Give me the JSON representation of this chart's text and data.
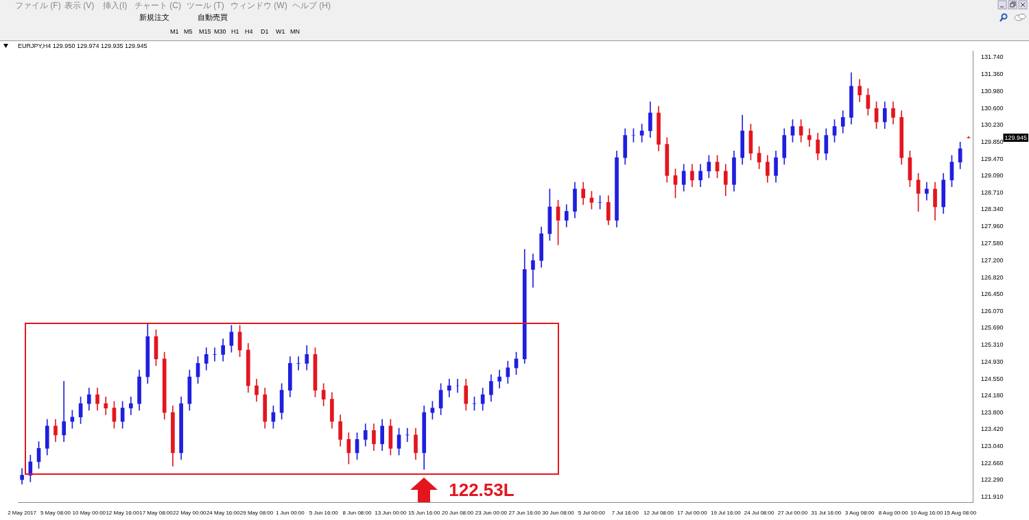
{
  "chart_data": {
    "type": "candlestick",
    "title": "EURJPY,H4 129.950 129.974 129.935 129.945",
    "categories": [
      "2 May 2017",
      null,
      null,
      null,
      "5 May 08:00",
      null,
      null,
      null,
      "10 May 00:00",
      null,
      null,
      null,
      "12 May 16:00",
      null,
      null,
      null,
      "17 May 08:00",
      null,
      null,
      null,
      "22 May 00:00",
      null,
      null,
      null,
      "24 May 16:00",
      null,
      null,
      null,
      "29 May 08:00",
      null,
      null,
      null,
      "1 Jun 00:00",
      null,
      null,
      null,
      "5 Jun 16:00",
      null,
      null,
      null,
      "8 Jun 08:00",
      null,
      null,
      null,
      "13 Jun 00:00",
      null,
      null,
      null,
      "15 Jun 16:00",
      null,
      null,
      null,
      "20 Jun 08:00",
      null,
      null,
      null,
      "23 Jun 00:00",
      null,
      null,
      null,
      "27 Jun 16:00",
      null,
      null,
      null,
      "30 Jun 08:00",
      null,
      null,
      null,
      "5 Jul 00:00",
      null,
      null,
      null,
      "7 Jul 16:00",
      null,
      null,
      null,
      "12 Jul 08:00",
      null,
      null,
      null,
      "17 Jul 00:00",
      null,
      null,
      null,
      "19 Jul 16:00",
      null,
      null,
      null,
      "24 Jul 08:00",
      null,
      null,
      null,
      "27 Jul 00:00",
      null,
      null,
      null,
      "31 Jul 16:00",
      null,
      null,
      null,
      "3 Aug 08:00",
      null,
      null,
      null,
      "8 Aug 00:00",
      null,
      null,
      null,
      "10 Aug 16:00",
      null,
      null,
      null,
      "15 Aug 08:00",
      null
    ],
    "ohlc": [
      [
        122.3,
        122.55,
        122.2,
        122.4
      ],
      [
        122.4,
        122.85,
        122.25,
        122.7
      ],
      [
        122.7,
        123.15,
        122.55,
        123.0
      ],
      [
        123.0,
        123.65,
        122.85,
        123.5
      ],
      [
        123.5,
        123.65,
        123.15,
        123.3
      ],
      [
        123.3,
        124.5,
        123.15,
        123.6
      ],
      [
        123.6,
        123.85,
        123.45,
        123.7
      ],
      [
        123.7,
        124.15,
        123.55,
        124.0
      ],
      [
        124.0,
        124.35,
        123.85,
        124.2
      ],
      [
        124.2,
        124.35,
        123.85,
        124.0
      ],
      [
        124.0,
        124.15,
        123.75,
        123.9
      ],
      [
        123.9,
        124.05,
        123.45,
        123.6
      ],
      [
        123.6,
        124.05,
        123.45,
        123.9
      ],
      [
        123.9,
        124.15,
        123.75,
        124.0
      ],
      [
        124.0,
        124.75,
        123.85,
        124.6
      ],
      [
        124.6,
        125.8,
        124.45,
        125.5
      ],
      [
        125.5,
        125.65,
        124.85,
        125.0
      ],
      [
        125.0,
        125.15,
        123.65,
        123.8
      ],
      [
        123.8,
        123.95,
        122.6,
        122.9
      ],
      [
        122.9,
        124.15,
        122.75,
        124.0
      ],
      [
        124.0,
        124.75,
        123.85,
        124.6
      ],
      [
        124.6,
        125.05,
        124.45,
        124.9
      ],
      [
        124.9,
        125.25,
        124.75,
        125.1
      ],
      [
        125.1,
        125.25,
        124.95,
        125.1
      ],
      [
        125.1,
        125.45,
        124.95,
        125.3
      ],
      [
        125.3,
        125.75,
        125.15,
        125.6
      ],
      [
        125.6,
        125.75,
        125.05,
        125.2
      ],
      [
        125.2,
        125.35,
        124.25,
        124.4
      ],
      [
        124.4,
        124.55,
        124.05,
        124.2
      ],
      [
        124.2,
        124.35,
        123.45,
        123.6
      ],
      [
        123.6,
        123.95,
        123.45,
        123.8
      ],
      [
        123.8,
        124.45,
        123.65,
        124.3
      ],
      [
        124.3,
        125.05,
        124.15,
        124.9
      ],
      [
        124.9,
        125.05,
        124.75,
        124.9
      ],
      [
        124.9,
        125.3,
        124.75,
        125.1
      ],
      [
        125.1,
        125.25,
        124.15,
        124.3
      ],
      [
        124.3,
        124.45,
        123.95,
        124.1
      ],
      [
        124.1,
        124.25,
        123.45,
        123.6
      ],
      [
        123.6,
        123.75,
        123.05,
        123.2
      ],
      [
        123.2,
        123.35,
        122.65,
        122.9
      ],
      [
        122.9,
        123.35,
        122.75,
        123.2
      ],
      [
        123.2,
        123.55,
        123.05,
        123.4
      ],
      [
        123.4,
        123.55,
        122.95,
        123.1
      ],
      [
        123.1,
        123.65,
        122.95,
        123.5
      ],
      [
        123.5,
        123.65,
        122.85,
        123.0
      ],
      [
        123.0,
        123.45,
        122.85,
        123.3
      ],
      [
        123.3,
        123.45,
        123.15,
        123.3
      ],
      [
        123.3,
        123.45,
        122.75,
        122.9
      ],
      [
        122.9,
        123.95,
        122.53,
        123.8
      ],
      [
        123.8,
        124.05,
        123.65,
        123.9
      ],
      [
        123.9,
        124.45,
        123.75,
        124.3
      ],
      [
        124.3,
        124.55,
        124.15,
        124.4
      ],
      [
        124.4,
        124.55,
        124.25,
        124.4
      ],
      [
        124.4,
        124.55,
        123.85,
        124.0
      ],
      [
        124.0,
        124.15,
        123.85,
        124.0
      ],
      [
        124.0,
        124.35,
        123.85,
        124.2
      ],
      [
        124.2,
        124.65,
        124.05,
        124.5
      ],
      [
        124.5,
        124.75,
        124.35,
        124.6
      ],
      [
        124.6,
        124.95,
        124.45,
        124.8
      ],
      [
        124.8,
        125.15,
        124.65,
        125.0
      ],
      [
        125.0,
        127.45,
        124.9,
        127.0
      ],
      [
        127.0,
        127.35,
        126.6,
        127.2
      ],
      [
        127.2,
        127.95,
        127.05,
        127.8
      ],
      [
        127.8,
        128.8,
        127.65,
        128.4
      ],
      [
        128.4,
        128.55,
        127.55,
        128.1
      ],
      [
        128.1,
        128.45,
        127.95,
        128.3
      ],
      [
        128.3,
        128.95,
        128.15,
        128.8
      ],
      [
        128.8,
        128.95,
        128.45,
        128.6
      ],
      [
        128.6,
        128.75,
        128.35,
        128.5
      ],
      [
        128.5,
        128.65,
        128.35,
        128.5
      ],
      [
        128.5,
        128.65,
        128.0,
        128.1
      ],
      [
        128.1,
        129.65,
        127.95,
        129.5
      ],
      [
        129.5,
        130.15,
        129.35,
        130.0
      ],
      [
        130.0,
        130.15,
        129.85,
        130.0
      ],
      [
        130.0,
        130.25,
        129.85,
        130.1
      ],
      [
        130.1,
        130.75,
        129.95,
        130.5
      ],
      [
        130.5,
        130.65,
        129.65,
        129.8
      ],
      [
        129.8,
        129.95,
        128.95,
        129.1
      ],
      [
        129.1,
        129.25,
        128.6,
        128.9
      ],
      [
        128.9,
        129.35,
        128.75,
        129.2
      ],
      [
        129.2,
        129.35,
        128.85,
        129.0
      ],
      [
        129.0,
        129.35,
        128.85,
        129.2
      ],
      [
        129.2,
        129.55,
        129.05,
        129.4
      ],
      [
        129.4,
        129.55,
        129.05,
        129.2
      ],
      [
        129.2,
        129.35,
        128.65,
        128.9
      ],
      [
        128.9,
        129.65,
        128.75,
        129.5
      ],
      [
        129.5,
        130.45,
        129.35,
        130.1
      ],
      [
        130.1,
        130.25,
        129.45,
        129.6
      ],
      [
        129.6,
        129.75,
        129.25,
        129.4
      ],
      [
        129.4,
        129.55,
        128.95,
        129.1
      ],
      [
        129.1,
        129.65,
        128.95,
        129.5
      ],
      [
        129.5,
        130.15,
        129.35,
        130.0
      ],
      [
        130.0,
        130.35,
        129.85,
        130.2
      ],
      [
        130.2,
        130.35,
        129.85,
        130.0
      ],
      [
        130.0,
        130.15,
        129.75,
        129.9
      ],
      [
        129.9,
        130.05,
        129.45,
        129.6
      ],
      [
        129.6,
        130.15,
        129.45,
        130.0
      ],
      [
        130.0,
        130.35,
        129.85,
        130.2
      ],
      [
        130.2,
        130.55,
        130.05,
        130.4
      ],
      [
        130.4,
        131.4,
        130.25,
        131.1
      ],
      [
        131.1,
        131.25,
        130.75,
        130.9
      ],
      [
        130.9,
        131.05,
        130.45,
        130.6
      ],
      [
        130.6,
        130.75,
        130.15,
        130.3
      ],
      [
        130.3,
        130.75,
        130.15,
        130.6
      ],
      [
        130.6,
        130.75,
        130.25,
        130.4
      ],
      [
        130.4,
        130.55,
        129.35,
        129.5
      ],
      [
        129.5,
        129.65,
        128.85,
        129.0
      ],
      [
        129.0,
        129.15,
        128.3,
        128.7
      ],
      [
        128.7,
        128.95,
        128.55,
        128.8
      ],
      [
        128.8,
        128.95,
        128.1,
        128.4
      ],
      [
        128.4,
        129.15,
        128.25,
        129.0
      ],
      [
        129.0,
        129.55,
        128.85,
        129.4
      ],
      [
        129.4,
        129.85,
        129.25,
        129.7
      ],
      [
        129.95,
        129.974,
        129.935,
        129.945
      ]
    ],
    "colors": [
      "#1f1fe0",
      "#1f1fe0",
      "#1f1fe0",
      "#1f1fe0",
      "#e3161e",
      "#1f1fe0",
      "#1f1fe0",
      "#1f1fe0",
      "#1f1fe0",
      "#e3161e",
      "#e3161e",
      "#e3161e",
      "#1f1fe0",
      "#1f1fe0",
      "#1f1fe0",
      "#1f1fe0",
      "#e3161e",
      "#e3161e",
      "#e3161e",
      "#1f1fe0",
      "#1f1fe0",
      "#1f1fe0",
      "#1f1fe0",
      "#1f1fe0",
      "#1f1fe0",
      "#1f1fe0",
      "#e3161e",
      "#e3161e",
      "#e3161e",
      "#e3161e",
      "#1f1fe0",
      "#1f1fe0",
      "#1f1fe0",
      "#1f1fe0",
      "#1f1fe0",
      "#e3161e",
      "#e3161e",
      "#e3161e",
      "#e3161e",
      "#e3161e",
      "#1f1fe0",
      "#1f1fe0",
      "#e3161e",
      "#1f1fe0",
      "#e3161e",
      "#1f1fe0",
      "#1f1fe0",
      "#e3161e",
      "#1f1fe0",
      "#1f1fe0",
      "#1f1fe0",
      "#1f1fe0",
      "#1f1fe0",
      "#e3161e",
      "#1f1fe0",
      "#1f1fe0",
      "#1f1fe0",
      "#1f1fe0",
      "#1f1fe0",
      "#1f1fe0",
      "#1f1fe0",
      "#1f1fe0",
      "#1f1fe0",
      "#1f1fe0",
      "#e3161e",
      "#1f1fe0",
      "#1f1fe0",
      "#e3161e",
      "#e3161e",
      "#1f1fe0",
      "#e3161e",
      "#1f1fe0",
      "#1f1fe0",
      "#1f1fe0",
      "#1f1fe0",
      "#1f1fe0",
      "#e3161e",
      "#e3161e",
      "#e3161e",
      "#1f1fe0",
      "#e3161e",
      "#1f1fe0",
      "#1f1fe0",
      "#e3161e",
      "#e3161e",
      "#1f1fe0",
      "#1f1fe0",
      "#e3161e",
      "#e3161e",
      "#e3161e",
      "#1f1fe0",
      "#1f1fe0",
      "#1f1fe0",
      "#e3161e",
      "#e3161e",
      "#e3161e",
      "#1f1fe0",
      "#1f1fe0",
      "#1f1fe0",
      "#1f1fe0",
      "#e3161e",
      "#e3161e",
      "#e3161e",
      "#1f1fe0",
      "#e3161e",
      "#e3161e",
      "#e3161e",
      "#e3161e",
      "#1f1fe0",
      "#e3161e",
      "#1f1fe0",
      "#1f1fe0",
      "#1f1fe0",
      "#e3161e"
    ],
    "ylim": [
      121.79,
      131.88
    ],
    "yticks": [
      {
        "value": 121.91,
        "label": "121.910"
      },
      {
        "value": 122.29,
        "label": "122.290"
      },
      {
        "value": 122.66,
        "label": "122.660"
      },
      {
        "value": 123.04,
        "label": "123.040"
      },
      {
        "value": 123.42,
        "label": "123.420"
      },
      {
        "value": 123.8,
        "label": "123.800"
      },
      {
        "value": 124.18,
        "label": "124.180"
      },
      {
        "value": 124.55,
        "label": "124.550"
      },
      {
        "value": 124.93,
        "label": "124.930"
      },
      {
        "value": 125.31,
        "label": "125.310"
      },
      {
        "value": 125.69,
        "label": "125.690"
      },
      {
        "value": 126.07,
        "label": "126.070"
      },
      {
        "value": 126.45,
        "label": "126.450"
      },
      {
        "value": 126.82,
        "label": "126.820"
      },
      {
        "value": 127.2,
        "label": "127.200"
      },
      {
        "value": 127.58,
        "label": "127.580"
      },
      {
        "value": 127.96,
        "label": "127.960"
      },
      {
        "value": 128.34,
        "label": "128.340"
      },
      {
        "value": 128.71,
        "label": "128.710"
      },
      {
        "value": 129.09,
        "label": "129.090"
      },
      {
        "value": 129.47,
        "label": "129.470"
      },
      {
        "value": 129.85,
        "label": "129.850"
      },
      {
        "value": 130.23,
        "label": "130.230"
      },
      {
        "value": 130.6,
        "label": "130.600"
      },
      {
        "value": 130.98,
        "label": "130.980"
      },
      {
        "value": 131.36,
        "label": "131.360"
      },
      {
        "value": 131.74,
        "label": "131.740"
      }
    ],
    "annotations": [
      "ファイル (F)",
      "表示 (V)",
      "挿入(I)",
      "チャート (C)",
      "ツール (T)",
      "ウィンドウ (W)",
      "ヘルプ (H)",
      "新規注文",
      "自動売買",
      "M1",
      "M5",
      "M15",
      "M30",
      "H1",
      "H4",
      "D1",
      "W1",
      "MN",
      {
        "text": "122.53L",
        "x": "15 Jun 16:00",
        "y": 122.53
      },
      "129.945"
    ]
  }
}
